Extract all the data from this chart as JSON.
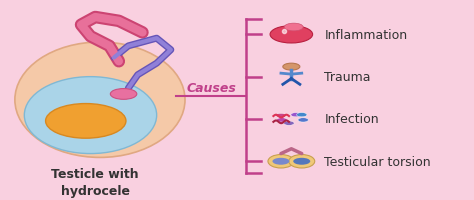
{
  "background_color": "#f9d0e0",
  "title_text": "Testicle with\nhydrocele",
  "title_color": "#333333",
  "title_fontsize": 9,
  "causes_label": "Causes",
  "causes_color": "#c0408a",
  "causes_fontsize": 9,
  "line_color": "#c0408a",
  "causes": [
    "Inflammation",
    "Trauma",
    "Infection",
    "Testicular torsion"
  ],
  "causes_fontsize_items": 9,
  "causes_color_items": "#333333",
  "bracket_color": "#c0408a",
  "figsize": [
    4.74,
    2.01
  ],
  "dpi": 100
}
